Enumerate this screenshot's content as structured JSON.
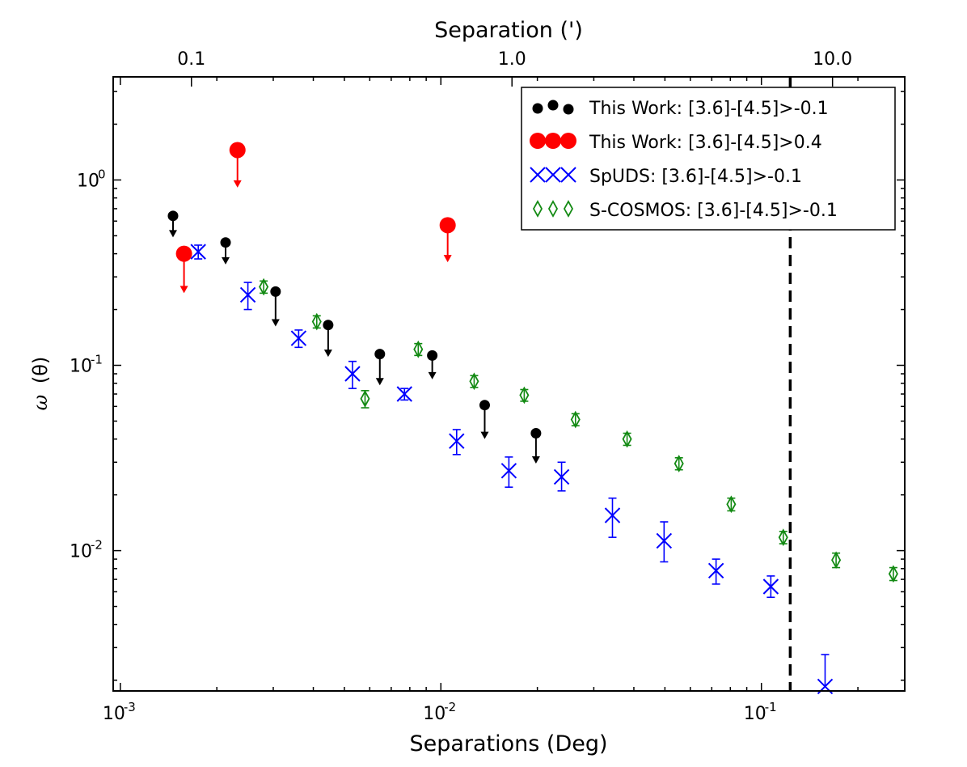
{
  "chart_data": {
    "type": "scatter",
    "xlabel": "Separations (Deg)",
    "xlabel_top": "Separation (')",
    "ylabel_text": "(θ)",
    "ylabel_symbol": "ω",
    "xscale": "log",
    "yscale": "log",
    "xlim": [
      0.00095,
      0.28
    ],
    "ylim": [
      0.00175,
      3.6
    ],
    "x_ticks": [
      {
        "value": 0.001,
        "base": "10",
        "exp": "-3"
      },
      {
        "value": 0.01,
        "base": "10",
        "exp": "-2"
      },
      {
        "value": 0.1,
        "base": "10",
        "exp": "-1"
      }
    ],
    "y_ticks": [
      {
        "value": 0.01,
        "base": "10",
        "exp": "-2"
      },
      {
        "value": 0.1,
        "base": "10",
        "exp": "-1"
      },
      {
        "value": 1,
        "base": "10",
        "exp": "0"
      }
    ],
    "top_ticks": [
      {
        "value_arcmin": 0.1,
        "label": "0.1"
      },
      {
        "value_arcmin": 1.0,
        "label": "1.0"
      },
      {
        "value_arcmin": 10.0,
        "label": "10.0"
      }
    ],
    "vline_x": 0.123,
    "legend_position": "top-right",
    "series": [
      {
        "name": "This Work: [3.6]-[4.5]>-0.1",
        "marker": "dot",
        "color": "#000000",
        "upper_limit": true,
        "x": [
          0.00146,
          0.00213,
          0.00305,
          0.00445,
          0.00645,
          0.0094,
          0.0137,
          0.0198
        ],
        "y": [
          0.64,
          0.46,
          0.25,
          0.165,
          0.115,
          0.113,
          0.061,
          0.043
        ],
        "arrow_to": [
          0.49,
          0.35,
          0.162,
          0.111,
          0.078,
          0.084,
          0.04,
          0.0295
        ]
      },
      {
        "name": "This Work: [3.6]-[4.5]>0.4",
        "marker": "bigdot",
        "color": "#ff0000",
        "upper_limit": true,
        "x": [
          0.00158,
          0.00232,
          0.0105
        ],
        "y": [
          0.4,
          1.45,
          0.57
        ],
        "arrow_to": [
          0.245,
          0.91,
          0.36
        ]
      },
      {
        "name": "SpUDS: [3.6]-[4.5]>-0.1",
        "marker": "x",
        "color": "#0000ff",
        "x": [
          0.00175,
          0.0025,
          0.0036,
          0.0053,
          0.0077,
          0.0112,
          0.0163,
          0.0238,
          0.0343,
          0.0497,
          0.0722,
          0.107,
          0.158
        ],
        "y": [
          0.41,
          0.24,
          0.14,
          0.09,
          0.07,
          0.039,
          0.027,
          0.025,
          0.0155,
          0.0113,
          0.0078,
          0.0064,
          0.00185
        ],
        "err_lo": [
          0.035,
          0.04,
          0.015,
          0.015,
          0.005,
          0.006,
          0.005,
          0.004,
          0.0037,
          0.0026,
          0.0012,
          0.0008,
          0.0
        ],
        "err_hi": [
          0.035,
          0.04,
          0.015,
          0.015,
          0.005,
          0.006,
          0.005,
          0.005,
          0.0037,
          0.003,
          0.0012,
          0.0009,
          0.0009
        ]
      },
      {
        "name": "S-COSMOS: [3.6]-[4.5]>-0.1",
        "marker": "diamond",
        "color": "#138a13",
        "x": [
          0.0028,
          0.0041,
          0.0058,
          0.0085,
          0.0127,
          0.0182,
          0.0263,
          0.0381,
          0.0553,
          0.0805,
          0.117,
          0.171,
          0.258
        ],
        "y": [
          0.265,
          0.172,
          0.066,
          0.122,
          0.082,
          0.069,
          0.051,
          0.04,
          0.0295,
          0.0178,
          0.0118,
          0.0089,
          0.0075
        ],
        "err_lo": [
          0.02,
          0.013,
          0.007,
          0.009,
          0.006,
          0.005,
          0.0038,
          0.003,
          0.0022,
          0.0014,
          0.0009,
          0.0008,
          0.0006
        ],
        "err_hi": [
          0.02,
          0.013,
          0.007,
          0.009,
          0.006,
          0.005,
          0.0038,
          0.003,
          0.0022,
          0.0014,
          0.0009,
          0.0008,
          0.0006
        ]
      }
    ]
  }
}
